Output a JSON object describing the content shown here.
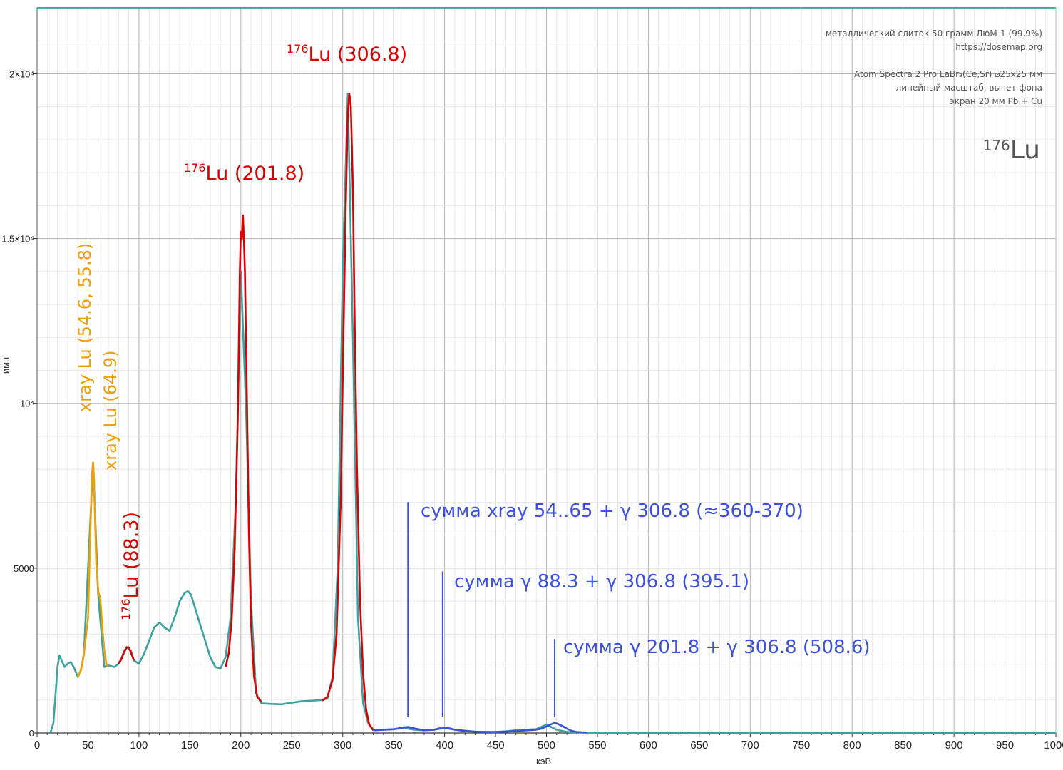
{
  "info": {
    "line1": "металлический слиток 50 грамм ЛюМ-1 (99.9%)",
    "line2": "https://dosemap.org",
    "line3": "Atom Spectra 2 Pro LaBr₃(Ce,Sr) ⌀25x25 мм",
    "line4": "линейный масштаб, вычет фона",
    "line5": "экран 20 мм Pb + Cu",
    "nuclide_mass": "176",
    "nuclide_symbol": "Lu"
  },
  "colors": {
    "background_curve": "#3aa3a0",
    "xray": "#f29f05",
    "lu_peak": "#dd0000",
    "sum_peak": "#3b4fe0",
    "grid_major": "#b4b4b4",
    "grid_minor": "#e3e3e3",
    "frame_top": "#4aa8a2"
  },
  "chart_data": {
    "type": "line",
    "xlabel": "кэВ",
    "ylabel": "имп",
    "xlim": [
      0,
      1000
    ],
    "ylim": [
      0,
      22000
    ],
    "x_ticks": [
      "0",
      "50",
      "100",
      "150",
      "200",
      "250",
      "300",
      "350",
      "400",
      "450",
      "500",
      "550",
      "600",
      "650",
      "700",
      "750",
      "800",
      "850",
      "900",
      "950",
      "1000"
    ],
    "y_ticks": [
      {
        "value": 0,
        "label": "0"
      },
      {
        "value": 5000,
        "label": "5000"
      },
      {
        "value": 10000,
        "label": "10⁴"
      },
      {
        "value": 15000,
        "label": "1.5×10⁴"
      },
      {
        "value": 20000,
        "label": "2×10⁴"
      }
    ],
    "grid": true,
    "series": [
      {
        "role": "background",
        "color": "#3aa3a0",
        "x": [
          13,
          16,
          18,
          20,
          22,
          24,
          27,
          30,
          33,
          36,
          40,
          43,
          46,
          50,
          55,
          60,
          66,
          70,
          76,
          80,
          85,
          88,
          92,
          95,
          100,
          105,
          110,
          115,
          120,
          125,
          130,
          135,
          140,
          145,
          148,
          151,
          155,
          160,
          165,
          170,
          175,
          180,
          185,
          190,
          195,
          200,
          205,
          210,
          215,
          220,
          230,
          240,
          250,
          260,
          270,
          275,
          280,
          285,
          290,
          295,
          300,
          305,
          310,
          315,
          320,
          325,
          330,
          340,
          350,
          360,
          370,
          380,
          390,
          400,
          410,
          420,
          430,
          440,
          450,
          460,
          470,
          480,
          490,
          500,
          510,
          520,
          530,
          540,
          560,
          600,
          650,
          700,
          750,
          800,
          850,
          900,
          950,
          1000
        ],
        "y": [
          0,
          300,
          1100,
          2000,
          2350,
          2200,
          2000,
          2100,
          2150,
          2000,
          1700,
          1900,
          2400,
          5000,
          8200,
          4200,
          2000,
          2050,
          2000,
          2100,
          2400,
          2600,
          2500,
          2200,
          2100,
          2400,
          2800,
          3200,
          3350,
          3200,
          3100,
          3500,
          4000,
          4250,
          4300,
          4200,
          3800,
          3300,
          2800,
          2300,
          2000,
          1950,
          2300,
          3500,
          7000,
          14000,
          10000,
          4000,
          1200,
          900,
          880,
          870,
          920,
          960,
          980,
          990,
          1000,
          1050,
          1700,
          5000,
          14000,
          19400,
          12000,
          3500,
          900,
          300,
          100,
          100,
          120,
          150,
          100,
          80,
          100,
          150,
          100,
          70,
          40,
          30,
          30,
          50,
          80,
          100,
          120,
          250,
          100,
          30,
          20,
          10,
          5,
          0,
          0,
          0,
          0,
          0,
          0,
          0,
          0,
          0
        ]
      },
      {
        "role": "xray",
        "label": "xray Lu (54.6, 55.8)",
        "color": "#f29f05",
        "x": [
          40,
          43,
          46,
          50,
          52,
          54,
          55,
          56,
          58,
          60,
          62,
          64,
          66,
          68,
          70
        ],
        "y": [
          1700,
          1900,
          2400,
          3500,
          5800,
          7900,
          8200,
          7600,
          5200,
          4300,
          4100,
          3200,
          2500,
          2100,
          2000
        ]
      },
      {
        "role": "lu",
        "label": "Lu (88.3)",
        "color": "#dd0000",
        "x": [
          80,
          83,
          85,
          88,
          90,
          92,
          95
        ],
        "y": [
          2100,
          2250,
          2450,
          2600,
          2600,
          2450,
          2200
        ]
      },
      {
        "role": "lu",
        "label": "Lu (201.8)",
        "color": "#dd0000",
        "x": [
          185,
          188,
          191,
          194,
          197,
          199,
          200,
          201,
          202,
          203,
          204,
          206,
          208,
          210,
          213,
          216,
          220
        ],
        "y": [
          2000,
          2400,
          3400,
          5600,
          9500,
          14000,
          15200,
          15000,
          15700,
          15000,
          14000,
          10000,
          6000,
          3300,
          1700,
          1100,
          950
        ]
      },
      {
        "role": "lu",
        "label": "Lu (306.8)",
        "color": "#dd0000",
        "x": [
          280,
          285,
          290,
          294,
          298,
          301,
          303,
          305,
          306.5,
          308,
          310,
          312,
          314,
          317,
          320,
          323,
          326,
          330
        ],
        "y": [
          980,
          1100,
          1600,
          3000,
          7000,
          12500,
          16000,
          18800,
          19400,
          19000,
          16500,
          12000,
          8000,
          4000,
          1800,
          700,
          250,
          80
        ]
      },
      {
        "role": "sum",
        "label": "сумма xray 54..65 + γ 306.8 (≈360-370)",
        "color": "#3b4fe0",
        "x": [
          330,
          340,
          350,
          355,
          360,
          365,
          370,
          375,
          380,
          390,
          395,
          400,
          405,
          410,
          420,
          430,
          440,
          450,
          460,
          470,
          480,
          490,
          495,
          500,
          505,
          508,
          510,
          515,
          520,
          525,
          530,
          540
        ],
        "y": [
          80,
          100,
          110,
          140,
          170,
          180,
          140,
          110,
          90,
          100,
          140,
          160,
          140,
          100,
          60,
          40,
          30,
          30,
          40,
          60,
          80,
          100,
          130,
          200,
          270,
          300,
          290,
          220,
          130,
          60,
          30,
          10
        ]
      }
    ],
    "annotations": [
      {
        "text": "сумма  xray 54..65 + γ 306.8 (≈360-370)",
        "line_x": 364,
        "line_y_top": 7000
      },
      {
        "text": "сумма  γ 88.3 + γ 306.8 (395.1)",
        "line_x": 398,
        "line_y_top": 4900
      },
      {
        "text": "сумма  γ 201.8 + γ 306.8 (508.6)",
        "line_x": 508,
        "line_y_top": 2850
      }
    ],
    "peak_labels": [
      {
        "mass": "176",
        "symbol": "Lu",
        "energy": " (306.8)"
      },
      {
        "mass": "176",
        "symbol": "Lu",
        "energy": " (201.8)"
      },
      {
        "mass": "176",
        "symbol": "Lu",
        "energy": " (88.3)"
      }
    ],
    "xray_labels": [
      "xray Lu (54.6,  55.8)",
      "xray Lu (64.9)"
    ]
  }
}
